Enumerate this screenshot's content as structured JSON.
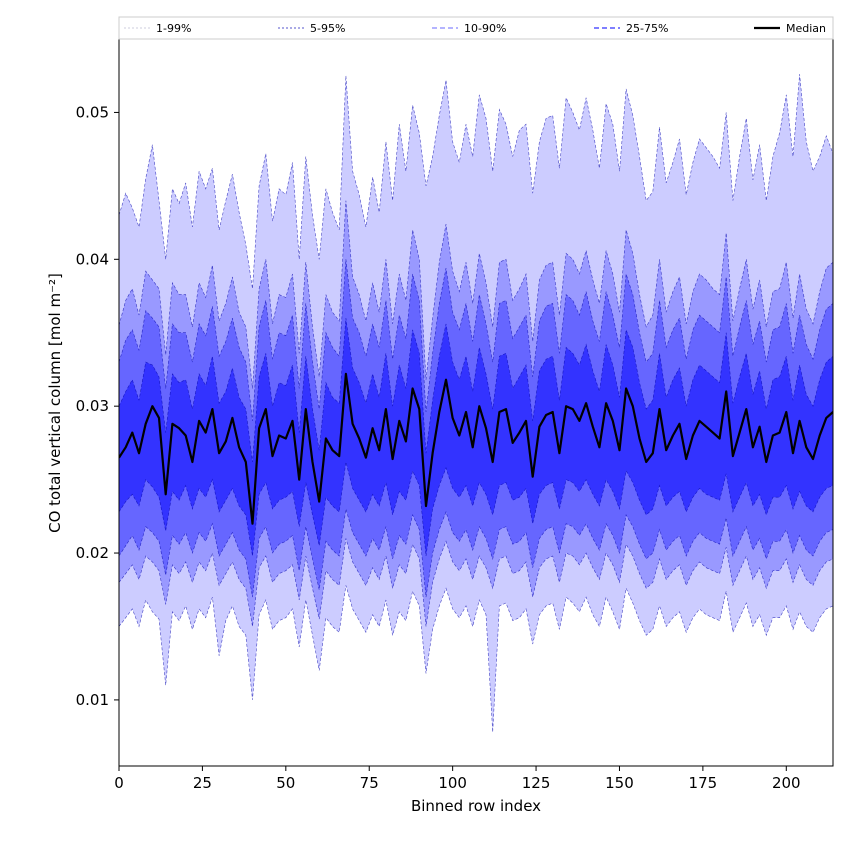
{
  "chart_data": {
    "type": "area",
    "xlabel": "Binned row index",
    "ylabel": "CO total vertical column [mol m⁻²]",
    "xlim": [
      0,
      214
    ],
    "ylim": [
      0.0055,
      0.055
    ],
    "xticks": [
      0,
      25,
      50,
      75,
      100,
      125,
      150,
      175,
      200
    ],
    "yticks": [
      0.01,
      0.02,
      0.03,
      0.04,
      0.05
    ],
    "ytick_labels": [
      "0.01",
      "0.02",
      "0.03",
      "0.04",
      "0.05"
    ],
    "grid": false,
    "legend_position": "top",
    "colors": {
      "band_1_99": "#ccccff",
      "band_5_95": "#9999ff",
      "band_10_90": "#6666ff",
      "band_25_75": "#3333ff",
      "median": "#000000"
    },
    "legend": [
      {
        "label": "1-99%",
        "style": "band_1_99"
      },
      {
        "label": "5-95%",
        "style": "band_5_95"
      },
      {
        "label": "10-90%",
        "style": "band_10_90"
      },
      {
        "label": "25-75%",
        "style": "band_25_75"
      },
      {
        "label": "Median",
        "style": "median"
      }
    ],
    "series_note_x": "x runs 0..214 in steps of 2 (108 points)",
    "x_start": 0,
    "x_step": 2,
    "series": [
      {
        "name": "Median",
        "values": [
          0.0265,
          0.0272,
          0.0282,
          0.0268,
          0.0288,
          0.03,
          0.0292,
          0.024,
          0.0288,
          0.0285,
          0.028,
          0.0262,
          0.029,
          0.0282,
          0.0298,
          0.0268,
          0.0276,
          0.0292,
          0.0272,
          0.0262,
          0.022,
          0.0285,
          0.0298,
          0.0266,
          0.028,
          0.0278,
          0.029,
          0.025,
          0.0298,
          0.0262,
          0.0235,
          0.0278,
          0.027,
          0.0266,
          0.0322,
          0.0288,
          0.0278,
          0.0265,
          0.0285,
          0.027,
          0.0298,
          0.0264,
          0.029,
          0.0276,
          0.0312,
          0.0298,
          0.0232,
          0.0268,
          0.0296,
          0.0318,
          0.0292,
          0.028,
          0.0296,
          0.0272,
          0.03,
          0.0285,
          0.0262,
          0.0296,
          0.0298,
          0.0275,
          0.0282,
          0.029,
          0.0252,
          0.0286,
          0.0294,
          0.0296,
          0.0268,
          0.03,
          0.0298,
          0.029,
          0.0302,
          0.0286,
          0.0272,
          0.0302,
          0.029,
          0.027,
          0.0312,
          0.03,
          0.0278,
          0.0262,
          0.0268,
          0.0298,
          0.027,
          0.028,
          0.0288,
          0.0264,
          0.028,
          0.029,
          0.0286,
          0.0282,
          0.0278,
          0.031,
          0.0266,
          0.0282,
          0.0298,
          0.0272,
          0.0286,
          0.0262,
          0.028,
          0.0282,
          0.0296,
          0.0268,
          0.029,
          0.0272,
          0.0264,
          0.028,
          0.0292,
          0.0296
        ]
      },
      {
        "name": "25%",
        "values": [
          0.0228,
          0.0235,
          0.024,
          0.0232,
          0.025,
          0.0245,
          0.0238,
          0.0215,
          0.0242,
          0.0236,
          0.0246,
          0.023,
          0.0244,
          0.0238,
          0.025,
          0.0228,
          0.0236,
          0.0244,
          0.0232,
          0.0226,
          0.0198,
          0.024,
          0.0248,
          0.023,
          0.0236,
          0.0238,
          0.0242,
          0.0218,
          0.0248,
          0.0226,
          0.0205,
          0.0238,
          0.0232,
          0.0228,
          0.0262,
          0.0244,
          0.0236,
          0.0228,
          0.024,
          0.0232,
          0.0248,
          0.0226,
          0.0242,
          0.0236,
          0.0256,
          0.0246,
          0.0198,
          0.023,
          0.0246,
          0.0258,
          0.0244,
          0.0238,
          0.0246,
          0.0232,
          0.0248,
          0.024,
          0.0226,
          0.0246,
          0.0248,
          0.0236,
          0.0238,
          0.0244,
          0.022,
          0.024,
          0.0246,
          0.0248,
          0.023,
          0.025,
          0.0248,
          0.0242,
          0.025,
          0.024,
          0.0232,
          0.025,
          0.0242,
          0.023,
          0.0256,
          0.0248,
          0.0236,
          0.0226,
          0.023,
          0.0246,
          0.0232,
          0.0238,
          0.0242,
          0.0228,
          0.0238,
          0.0244,
          0.024,
          0.0238,
          0.0236,
          0.0254,
          0.0228,
          0.0238,
          0.0248,
          0.0232,
          0.024,
          0.0226,
          0.0238,
          0.0238,
          0.0246,
          0.023,
          0.0242,
          0.0232,
          0.0228,
          0.0238,
          0.0244,
          0.0246
        ]
      },
      {
        "name": "75%",
        "values": [
          0.03,
          0.031,
          0.0318,
          0.0304,
          0.033,
          0.0328,
          0.032,
          0.0282,
          0.0322,
          0.0316,
          0.0318,
          0.0298,
          0.0322,
          0.0314,
          0.0334,
          0.0302,
          0.031,
          0.0326,
          0.0306,
          0.0298,
          0.0262,
          0.032,
          0.0336,
          0.03,
          0.0316,
          0.0314,
          0.0328,
          0.0282,
          0.0334,
          0.0298,
          0.027,
          0.0316,
          0.0306,
          0.0302,
          0.036,
          0.0326,
          0.0316,
          0.0302,
          0.0322,
          0.0306,
          0.0336,
          0.03,
          0.0328,
          0.0312,
          0.0352,
          0.0336,
          0.0268,
          0.0304,
          0.0334,
          0.0356,
          0.033,
          0.0318,
          0.0334,
          0.031,
          0.034,
          0.0322,
          0.0298,
          0.0334,
          0.0336,
          0.0312,
          0.032,
          0.0328,
          0.029,
          0.0324,
          0.0332,
          0.0334,
          0.0304,
          0.034,
          0.0336,
          0.0328,
          0.0342,
          0.0324,
          0.031,
          0.0342,
          0.0328,
          0.0306,
          0.0352,
          0.034,
          0.0316,
          0.0298,
          0.0304,
          0.0336,
          0.0306,
          0.0318,
          0.0326,
          0.03,
          0.0318,
          0.0328,
          0.0324,
          0.032,
          0.0316,
          0.035,
          0.0302,
          0.032,
          0.0336,
          0.0308,
          0.0324,
          0.0298,
          0.0318,
          0.032,
          0.0334,
          0.0304,
          0.0328,
          0.0308,
          0.03,
          0.0318,
          0.033,
          0.0334
        ]
      },
      {
        "name": "10%",
        "values": [
          0.0198,
          0.0205,
          0.0212,
          0.0202,
          0.0218,
          0.0214,
          0.0208,
          0.0185,
          0.0212,
          0.0206,
          0.0214,
          0.02,
          0.0214,
          0.0208,
          0.022,
          0.0198,
          0.0206,
          0.0214,
          0.0202,
          0.0196,
          0.017,
          0.021,
          0.0218,
          0.02,
          0.0206,
          0.0208,
          0.0212,
          0.0188,
          0.0218,
          0.0196,
          0.0175,
          0.0208,
          0.0202,
          0.0198,
          0.023,
          0.0214,
          0.0206,
          0.0198,
          0.021,
          0.0202,
          0.0218,
          0.0196,
          0.0212,
          0.0206,
          0.0226,
          0.0216,
          0.017,
          0.02,
          0.0216,
          0.0228,
          0.0214,
          0.0208,
          0.0216,
          0.0202,
          0.0218,
          0.021,
          0.0196,
          0.0216,
          0.0218,
          0.0206,
          0.0208,
          0.0214,
          0.019,
          0.021,
          0.0216,
          0.0218,
          0.02,
          0.022,
          0.0218,
          0.0212,
          0.022,
          0.021,
          0.0202,
          0.022,
          0.0212,
          0.02,
          0.0226,
          0.0218,
          0.0206,
          0.0196,
          0.02,
          0.0216,
          0.0202,
          0.0208,
          0.0212,
          0.0198,
          0.0208,
          0.0214,
          0.021,
          0.0208,
          0.0206,
          0.0224,
          0.0198,
          0.0208,
          0.0218,
          0.0202,
          0.021,
          0.0196,
          0.0208,
          0.0208,
          0.0216,
          0.02,
          0.0212,
          0.0202,
          0.0198,
          0.0208,
          0.0214,
          0.0216
        ]
      },
      {
        "name": "90%",
        "values": [
          0.033,
          0.0345,
          0.0352,
          0.0338,
          0.0365,
          0.036,
          0.0354,
          0.0312,
          0.0356,
          0.035,
          0.035,
          0.033,
          0.0356,
          0.0348,
          0.0368,
          0.0334,
          0.0344,
          0.036,
          0.034,
          0.033,
          0.029,
          0.0354,
          0.0372,
          0.0332,
          0.035,
          0.0348,
          0.0362,
          0.0312,
          0.037,
          0.033,
          0.0298,
          0.035,
          0.034,
          0.0334,
          0.04,
          0.036,
          0.035,
          0.0334,
          0.0356,
          0.034,
          0.0372,
          0.0332,
          0.0362,
          0.0346,
          0.039,
          0.0372,
          0.0296,
          0.0336,
          0.037,
          0.0394,
          0.0364,
          0.0352,
          0.037,
          0.0344,
          0.0376,
          0.0356,
          0.033,
          0.037,
          0.0372,
          0.0346,
          0.0354,
          0.0362,
          0.032,
          0.0358,
          0.0368,
          0.037,
          0.0336,
          0.0376,
          0.0372,
          0.0362,
          0.0378,
          0.0358,
          0.0344,
          0.0378,
          0.0362,
          0.034,
          0.039,
          0.0376,
          0.035,
          0.033,
          0.0336,
          0.0372,
          0.034,
          0.0352,
          0.036,
          0.0332,
          0.0352,
          0.0362,
          0.0358,
          0.0354,
          0.035,
          0.0388,
          0.0334,
          0.0354,
          0.0372,
          0.0342,
          0.0358,
          0.033,
          0.0352,
          0.0354,
          0.037,
          0.0336,
          0.0362,
          0.0342,
          0.0332,
          0.0352,
          0.0366,
          0.037
        ]
      },
      {
        "name": "5%",
        "values": [
          0.018,
          0.0186,
          0.0192,
          0.0182,
          0.0198,
          0.0194,
          0.0188,
          0.0165,
          0.0192,
          0.0186,
          0.0194,
          0.018,
          0.0194,
          0.0188,
          0.02,
          0.0178,
          0.0186,
          0.0194,
          0.0182,
          0.0176,
          0.015,
          0.019,
          0.0198,
          0.018,
          0.0186,
          0.0188,
          0.0192,
          0.0168,
          0.0198,
          0.0176,
          0.0155,
          0.0188,
          0.0182,
          0.0178,
          0.021,
          0.0194,
          0.0186,
          0.0178,
          0.019,
          0.0182,
          0.0198,
          0.0176,
          0.0192,
          0.0186,
          0.0206,
          0.0196,
          0.015,
          0.018,
          0.0196,
          0.0208,
          0.0194,
          0.0188,
          0.0196,
          0.0182,
          0.0198,
          0.019,
          0.0176,
          0.0196,
          0.0198,
          0.0186,
          0.0188,
          0.0194,
          0.017,
          0.019,
          0.0196,
          0.0198,
          0.018,
          0.02,
          0.0198,
          0.0192,
          0.02,
          0.019,
          0.0182,
          0.02,
          0.0192,
          0.018,
          0.0206,
          0.0198,
          0.0186,
          0.0176,
          0.018,
          0.0196,
          0.0182,
          0.0188,
          0.0192,
          0.0178,
          0.0188,
          0.0194,
          0.019,
          0.0188,
          0.0186,
          0.0204,
          0.0178,
          0.0188,
          0.0198,
          0.0182,
          0.019,
          0.0176,
          0.0188,
          0.0188,
          0.0196,
          0.018,
          0.0192,
          0.0182,
          0.0178,
          0.0188,
          0.0194,
          0.0196
        ]
      },
      {
        "name": "95%",
        "values": [
          0.0355,
          0.0372,
          0.038,
          0.0362,
          0.0392,
          0.0386,
          0.038,
          0.0335,
          0.0384,
          0.0376,
          0.0376,
          0.0354,
          0.0384,
          0.0374,
          0.0396,
          0.0358,
          0.037,
          0.0388,
          0.0364,
          0.0354,
          0.0312,
          0.038,
          0.04,
          0.0356,
          0.0376,
          0.0374,
          0.039,
          0.0336,
          0.0398,
          0.0354,
          0.032,
          0.0376,
          0.0364,
          0.0358,
          0.044,
          0.0388,
          0.0376,
          0.0358,
          0.0384,
          0.0364,
          0.04,
          0.0356,
          0.039,
          0.0372,
          0.042,
          0.04,
          0.0318,
          0.036,
          0.0398,
          0.0424,
          0.0392,
          0.0378,
          0.0398,
          0.037,
          0.0404,
          0.0384,
          0.0354,
          0.0398,
          0.04,
          0.0372,
          0.038,
          0.039,
          0.0344,
          0.0386,
          0.0396,
          0.0398,
          0.0362,
          0.0404,
          0.04,
          0.039,
          0.0406,
          0.0386,
          0.037,
          0.0406,
          0.039,
          0.0364,
          0.042,
          0.0404,
          0.0376,
          0.0354,
          0.0362,
          0.04,
          0.0364,
          0.0378,
          0.0388,
          0.0356,
          0.0378,
          0.039,
          0.0386,
          0.038,
          0.0376,
          0.0418,
          0.0358,
          0.038,
          0.04,
          0.0366,
          0.0386,
          0.0354,
          0.0378,
          0.038,
          0.0398,
          0.036,
          0.039,
          0.0366,
          0.0356,
          0.0378,
          0.0394,
          0.0398
        ]
      },
      {
        "name": "1%",
        "values": [
          0.015,
          0.0156,
          0.0162,
          0.015,
          0.0168,
          0.016,
          0.0155,
          0.011,
          0.016,
          0.0154,
          0.0164,
          0.0148,
          0.0162,
          0.0156,
          0.017,
          0.013,
          0.0154,
          0.0164,
          0.015,
          0.0144,
          0.01,
          0.0158,
          0.0168,
          0.0148,
          0.0154,
          0.0156,
          0.0162,
          0.0136,
          0.0168,
          0.0144,
          0.012,
          0.0156,
          0.015,
          0.0146,
          0.0178,
          0.0162,
          0.0154,
          0.0146,
          0.0158,
          0.015,
          0.0168,
          0.0144,
          0.016,
          0.0154,
          0.0174,
          0.0164,
          0.0118,
          0.0148,
          0.0164,
          0.0176,
          0.0162,
          0.0156,
          0.0164,
          0.015,
          0.0168,
          0.0158,
          0.0078,
          0.0164,
          0.0166,
          0.0154,
          0.0156,
          0.0162,
          0.0138,
          0.0158,
          0.0164,
          0.0166,
          0.0148,
          0.017,
          0.0166,
          0.016,
          0.017,
          0.0158,
          0.015,
          0.017,
          0.016,
          0.0148,
          0.0176,
          0.0166,
          0.0154,
          0.0144,
          0.0148,
          0.0164,
          0.015,
          0.0156,
          0.016,
          0.0146,
          0.0156,
          0.0162,
          0.0158,
          0.0156,
          0.0154,
          0.0174,
          0.0146,
          0.0156,
          0.0166,
          0.015,
          0.0158,
          0.0144,
          0.0156,
          0.0156,
          0.0164,
          0.0148,
          0.016,
          0.015,
          0.0146,
          0.0156,
          0.0162,
          0.0164
        ]
      },
      {
        "name": "99%",
        "values": [
          0.043,
          0.0445,
          0.0435,
          0.0422,
          0.0455,
          0.0478,
          0.044,
          0.04,
          0.0448,
          0.0438,
          0.0452,
          0.0422,
          0.046,
          0.0448,
          0.0462,
          0.042,
          0.044,
          0.0458,
          0.0432,
          0.041,
          0.038,
          0.045,
          0.0472,
          0.0426,
          0.0448,
          0.0444,
          0.0466,
          0.04,
          0.047,
          0.043,
          0.04,
          0.0448,
          0.0432,
          0.042,
          0.0525,
          0.046,
          0.0444,
          0.0422,
          0.0456,
          0.0432,
          0.048,
          0.044,
          0.0492,
          0.046,
          0.0505,
          0.0486,
          0.045,
          0.047,
          0.0498,
          0.0522,
          0.048,
          0.0466,
          0.0492,
          0.047,
          0.0512,
          0.0496,
          0.046,
          0.0502,
          0.0492,
          0.047,
          0.0488,
          0.0492,
          0.0445,
          0.048,
          0.0496,
          0.0498,
          0.0462,
          0.051,
          0.05,
          0.0488,
          0.051,
          0.0488,
          0.0462,
          0.0506,
          0.0492,
          0.046,
          0.0516,
          0.0498,
          0.047,
          0.044,
          0.0446,
          0.049,
          0.0452,
          0.0466,
          0.0482,
          0.0444,
          0.0466,
          0.0482,
          0.0476,
          0.047,
          0.0462,
          0.05,
          0.044,
          0.047,
          0.0496,
          0.0454,
          0.0478,
          0.044,
          0.047,
          0.0486,
          0.0512,
          0.047,
          0.0526,
          0.048,
          0.046,
          0.047,
          0.0484,
          0.0472
        ]
      }
    ]
  }
}
